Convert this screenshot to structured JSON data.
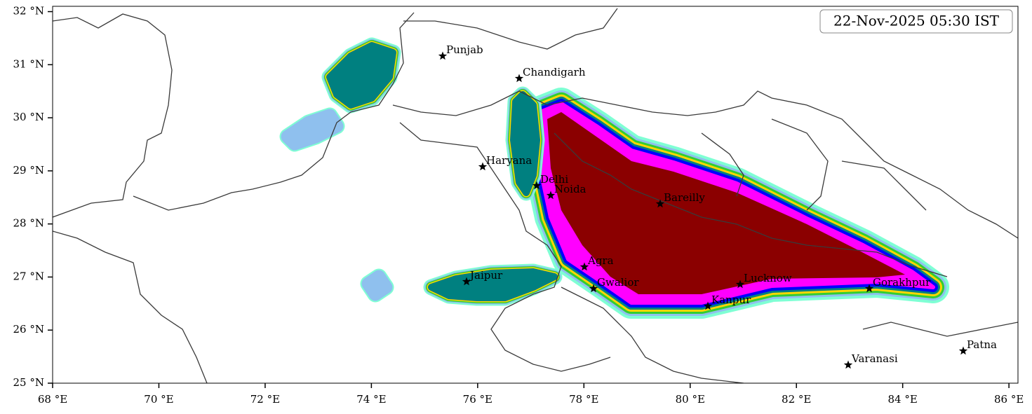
{
  "timestamp": "22-Nov-2025 05:30 IST",
  "xlim": [
    68,
    86.17
  ],
  "ylim": [
    25,
    32.1
  ],
  "xticks": [
    {
      "value": 68,
      "label": "68 °E"
    },
    {
      "value": 70,
      "label": "70 °E"
    },
    {
      "value": 72,
      "label": "72 °E"
    },
    {
      "value": 74,
      "label": "74 °E"
    },
    {
      "value": 76,
      "label": "76 °E"
    },
    {
      "value": 78,
      "label": "78 °E"
    },
    {
      "value": 80,
      "label": "80 °E"
    },
    {
      "value": 82,
      "label": "82 °E"
    },
    {
      "value": 84,
      "label": "84 °E"
    },
    {
      "value": 86,
      "label": "86 °E"
    }
  ],
  "yticks": [
    {
      "value": 25,
      "label": "25 °N"
    },
    {
      "value": 26,
      "label": "26 °N"
    },
    {
      "value": 27,
      "label": "27 °N"
    },
    {
      "value": 28,
      "label": "28 °N"
    },
    {
      "value": 29,
      "label": "29 °N"
    },
    {
      "value": 30,
      "label": "30 °N"
    },
    {
      "value": 31,
      "label": "31 °N"
    },
    {
      "value": 32,
      "label": "32 °N"
    }
  ],
  "cities": [
    "Punjab",
    "Chandigarh",
    "Haryana",
    "Delhi",
    "Noida",
    "Bareilly",
    "Agra",
    "Jaipur",
    "Gwalior",
    "Lucknow",
    "Kanpur",
    "Gorakhpur",
    "Varanasi",
    "Patna"
  ]
}
